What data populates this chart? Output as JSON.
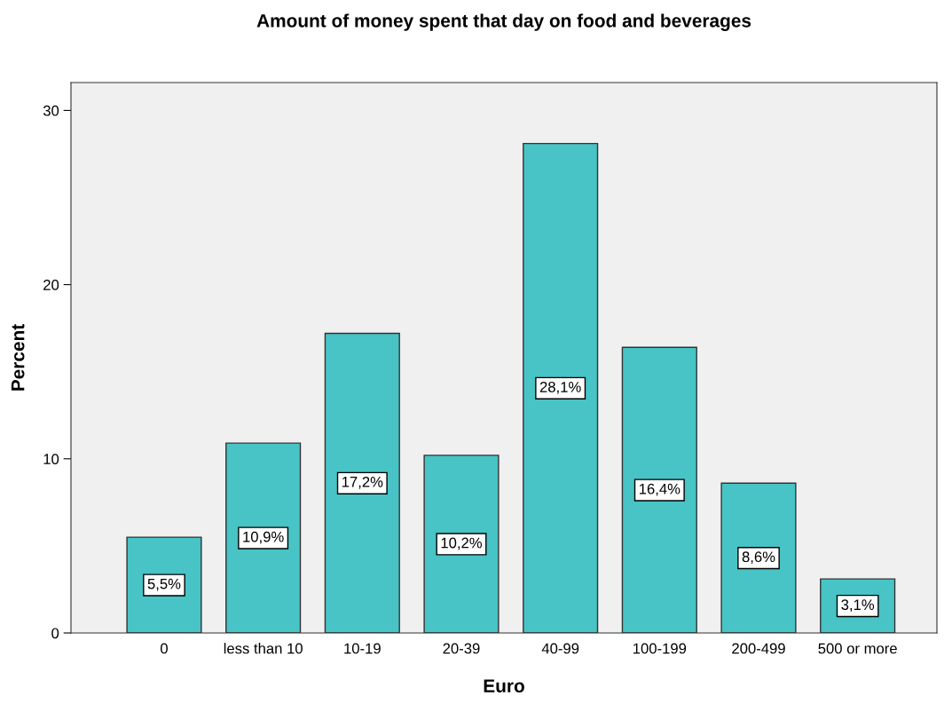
{
  "chart_data": {
    "type": "bar",
    "title": "Amount of money spent that day on food and beverages",
    "xlabel": "Euro",
    "ylabel": "Percent",
    "categories": [
      "0",
      "less than 10",
      "10-19",
      "20-39",
      "40-99",
      "100-199",
      "200-499",
      "500 or more"
    ],
    "values": [
      5.5,
      10.9,
      17.2,
      10.2,
      28.1,
      16.4,
      8.6,
      3.1
    ],
    "value_labels": [
      "5,5%",
      "10,9%",
      "17,2%",
      "10,2%",
      "28,1%",
      "16,4%",
      "8,6%",
      "3,1%"
    ],
    "color": "#48c3c6",
    "ylim": [
      0,
      31.6
    ],
    "yticks": [
      0,
      10,
      20,
      30
    ],
    "grid": false
  }
}
